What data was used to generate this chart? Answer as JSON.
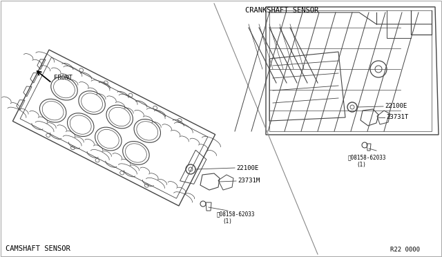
{
  "bg_color": "#ffffff",
  "line_color": "#444444",
  "text_color": "#000000",
  "title_camshaft": "CAMSHAFT SENSOR",
  "title_crankshaft": "CRANKSHAFT SENSOR",
  "ref_number": "R22 0000",
  "front_label": "FRONT",
  "label_22100E_cam": "22100E",
  "label_23731M": "23731M",
  "label_bolt_cam": "08158-62033",
  "label_bolt_cam_sub": "(1)",
  "label_22100E_crank": "22100E",
  "label_23731T": "23731T",
  "label_bolt_crank": "08158-62033",
  "label_bolt_crank_sub": "(1)",
  "figsize": [
    6.4,
    3.72
  ],
  "dpi": 100
}
